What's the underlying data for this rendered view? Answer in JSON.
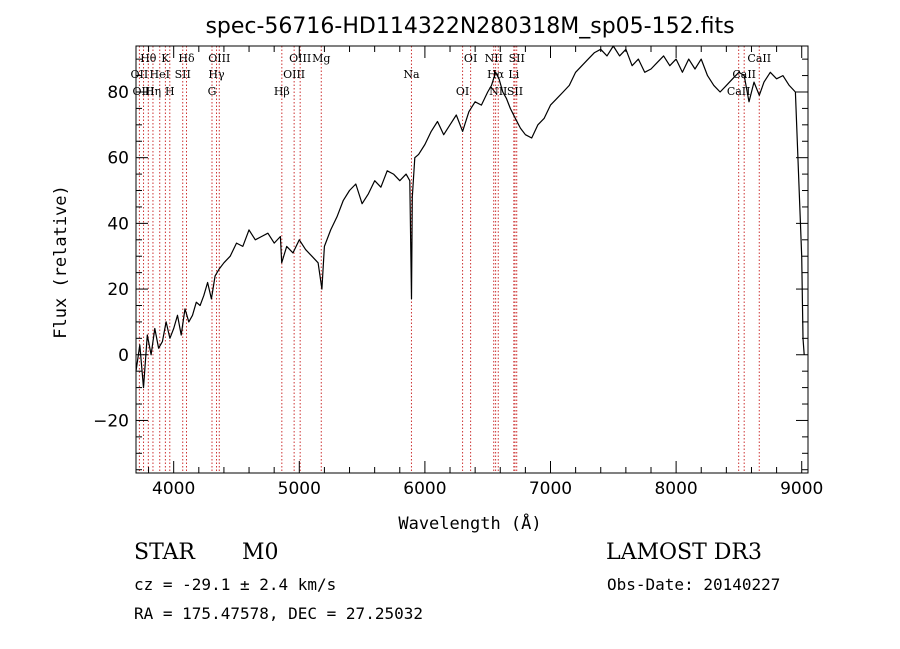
{
  "chart_data": {
    "type": "line",
    "title": "spec-56716-HD114322N280318M_sp05-152.fits",
    "xlabel": "Wavelength (Å)",
    "ylabel": "Flux (relative)",
    "xlim": [
      3700,
      9050
    ],
    "ylim": [
      -36,
      94
    ],
    "xticks": [
      4000,
      5000,
      6000,
      7000,
      8000,
      9000
    ],
    "yticks": [
      -20,
      0,
      20,
      40,
      60,
      80
    ],
    "grid": false,
    "series": [
      {
        "name": "flux",
        "x": [
          3700,
          3730,
          3760,
          3790,
          3820,
          3850,
          3880,
          3910,
          3940,
          3970,
          4000,
          4030,
          4060,
          4090,
          4120,
          4150,
          4180,
          4210,
          4240,
          4270,
          4300,
          4330,
          4360,
          4400,
          4450,
          4500,
          4550,
          4600,
          4650,
          4700,
          4750,
          4800,
          4850,
          4860,
          4900,
          4950,
          5000,
          5050,
          5100,
          5150,
          5180,
          5200,
          5250,
          5300,
          5350,
          5400,
          5450,
          5500,
          5550,
          5600,
          5650,
          5700,
          5750,
          5800,
          5850,
          5880,
          5893,
          5900,
          5920,
          5950,
          6000,
          6050,
          6100,
          6150,
          6200,
          6250,
          6300,
          6350,
          6400,
          6450,
          6500,
          6530,
          6563,
          6590,
          6620,
          6650,
          6680,
          6720,
          6760,
          6800,
          6850,
          6900,
          6950,
          7000,
          7050,
          7100,
          7150,
          7200,
          7250,
          7300,
          7350,
          7400,
          7450,
          7500,
          7550,
          7600,
          7650,
          7700,
          7750,
          7800,
          7850,
          7900,
          7950,
          8000,
          8050,
          8100,
          8150,
          8200,
          8250,
          8300,
          8350,
          8400,
          8450,
          8500,
          8542,
          8580,
          8620,
          8662,
          8700,
          8750,
          8800,
          8850,
          8900,
          8950,
          9000,
          9010,
          9020
        ],
        "y": [
          -5,
          3,
          -10,
          6,
          0,
          8,
          2,
          4,
          10,
          5,
          8,
          12,
          6,
          14,
          10,
          12,
          16,
          15,
          18,
          22,
          17,
          24,
          26,
          28,
          30,
          34,
          33,
          38,
          35,
          36,
          37,
          34,
          36,
          28,
          33,
          31,
          35,
          32,
          30,
          28,
          20,
          33,
          38,
          42,
          47,
          50,
          52,
          46,
          49,
          53,
          51,
          56,
          55,
          53,
          55,
          53,
          17,
          48,
          60,
          61,
          64,
          68,
          71,
          67,
          70,
          73,
          68,
          74,
          77,
          76,
          80,
          82,
          86,
          84,
          80,
          78,
          75,
          72,
          69,
          67,
          66,
          70,
          72,
          76,
          78,
          80,
          82,
          86,
          88,
          90,
          92,
          93,
          91,
          94,
          91,
          93,
          88,
          90,
          86,
          87,
          89,
          91,
          88,
          90,
          86,
          90,
          87,
          90,
          85,
          82,
          80,
          82,
          84,
          86,
          85,
          77,
          83,
          79,
          83,
          86,
          84,
          85,
          82,
          80,
          30,
          5,
          0
        ]
      }
    ],
    "lines": [
      {
        "name": "Hθ",
        "wl": 3798
      },
      {
        "name": "OII",
        "wl": 3727
      },
      {
        "name": "OIII",
        "wl": 3760
      },
      {
        "name": "K",
        "wl": 3934
      },
      {
        "name": "HeI",
        "wl": 3889
      },
      {
        "name": "Hη",
        "wl": 3835
      },
      {
        "name": "Hδ",
        "wl": 4102
      },
      {
        "name": "SII",
        "wl": 4072
      },
      {
        "name": "H",
        "wl": 3969
      },
      {
        "name": "OIII",
        "wl": 4363
      },
      {
        "name": "Hγ",
        "wl": 4341
      },
      {
        "name": "G",
        "wl": 4305
      },
      {
        "name": "OIII",
        "wl": 5007
      },
      {
        "name": "OIII",
        "wl": 4959
      },
      {
        "name": "Hβ",
        "wl": 4861
      },
      {
        "name": "Mg",
        "wl": 5175
      },
      {
        "name": "Na",
        "wl": 5893
      },
      {
        "name": "OI",
        "wl": 6300
      },
      {
        "name": "OI",
        "wl": 6364
      },
      {
        "name": "Hα",
        "wl": 6563
      },
      {
        "name": "SII",
        "wl": 6717
      },
      {
        "name": "NII",
        "wl": 6548
      },
      {
        "name": "Li",
        "wl": 6708
      },
      {
        "name": "NII",
        "wl": 6584
      },
      {
        "name": "SII",
        "wl": 6731
      },
      {
        "name": "CaII",
        "wl": 8542
      },
      {
        "name": "CaII",
        "wl": 8498
      },
      {
        "name": "CaII",
        "wl": 8662
      }
    ]
  },
  "info": {
    "object_class": "STAR",
    "subclass": "M0",
    "survey": "LAMOST DR3",
    "redshift": "cz = -29.1 ± 2.4 km/s",
    "obs_date": "Obs-Date: 20140227",
    "coords": "RA = 175.47578, DEC =  27.25032"
  },
  "colors": {
    "line_marker": "#cc3333",
    "spectrum": "#000000",
    "background": "#ffffff"
  }
}
